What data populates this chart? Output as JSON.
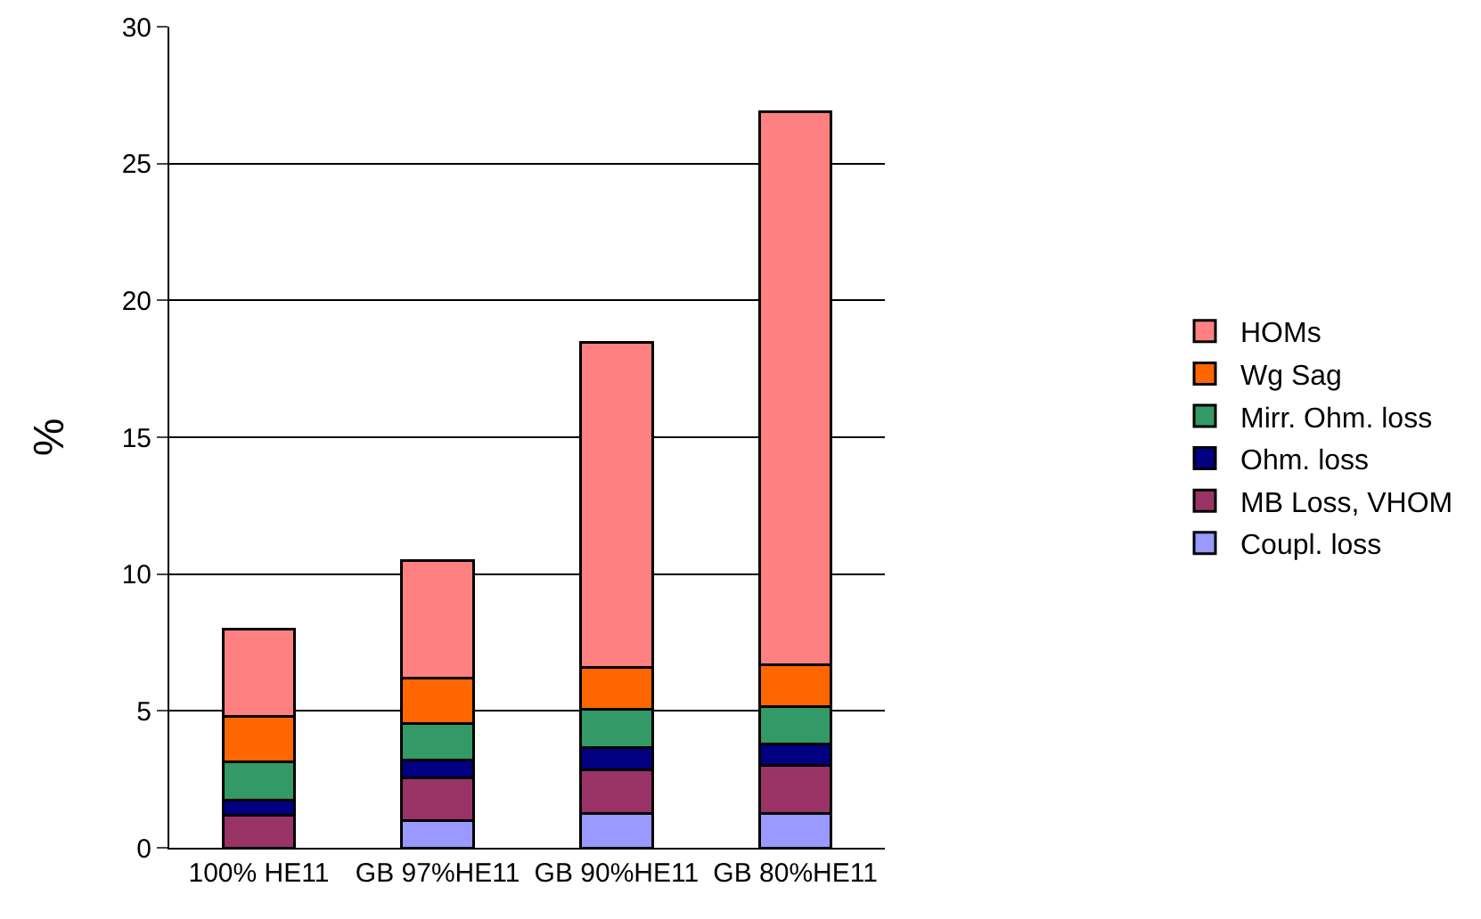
{
  "chart_data": {
    "type": "bar",
    "stacked": true,
    "ylabel": "%",
    "categories": [
      "100% HE11",
      "GB 97%HE11",
      "GB 90%HE11",
      "GB 80%HE11"
    ],
    "series": [
      {
        "name": "Coupl. loss",
        "color": "#9999ff",
        "values": [
          0,
          1.0,
          1.25,
          1.25
        ]
      },
      {
        "name": "MB Loss, VHOM",
        "color": "#993366",
        "values": [
          1.2,
          1.55,
          1.6,
          1.75
        ]
      },
      {
        "name": "Ohm. loss",
        "color": "#000080",
        "values": [
          0.55,
          0.65,
          0.8,
          0.8
        ]
      },
      {
        "name": "Mirr. Ohm. loss",
        "color": "#339966",
        "values": [
          1.4,
          1.35,
          1.4,
          1.35
        ]
      },
      {
        "name": "Wg Sag",
        "color": "#ff6600",
        "values": [
          1.65,
          1.65,
          1.55,
          1.55
        ]
      },
      {
        "name": "HOMs",
        "color": "#ff8080",
        "values": [
          3.2,
          4.3,
          11.85,
          20.2
        ]
      }
    ],
    "ylim": [
      0,
      30
    ],
    "yticks": [
      0,
      5,
      10,
      15,
      20,
      25,
      30
    ],
    "grid": "y",
    "legend": "right"
  }
}
